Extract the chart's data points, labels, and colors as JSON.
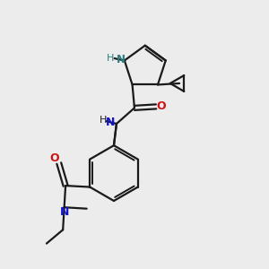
{
  "bg_color": "#ececec",
  "bond_color": "#1a1a1a",
  "N_color": "#1414cd",
  "O_color": "#cc1414",
  "NH_color": "#1414cd",
  "NH_pyrrole_color": "#2e7d7d",
  "figsize": [
    3.0,
    3.0
  ],
  "dpi": 100,
  "xlim": [
    0,
    10
  ],
  "ylim": [
    0,
    10
  ]
}
